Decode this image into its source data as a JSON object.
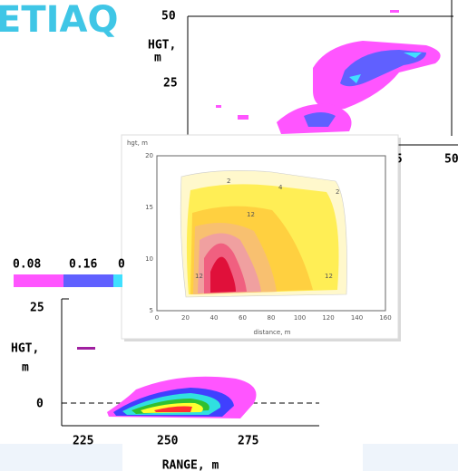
{
  "logo": "ETIAQ",
  "top_panel": {
    "y_label": [
      "HGT,",
      "m"
    ],
    "y_ticks": [
      "50",
      "25"
    ],
    "x_ticks": [
      "75",
      "50"
    ]
  },
  "middle_panel": {
    "y_label": "hgt, m",
    "y_ticks": [
      "20",
      "15",
      "10",
      "5"
    ],
    "x_ticks": [
      "0",
      "20",
      "40",
      "60",
      "80",
      "100",
      "120",
      "140",
      "160"
    ],
    "x_label": "distance, m",
    "contour_labels": [
      "2",
      "4",
      "2",
      "12",
      "12",
      "12"
    ]
  },
  "bottom_panel": {
    "colorbar_labels": [
      "0.08",
      "0.16",
      "0"
    ],
    "y_label": [
      "HGT,",
      "m"
    ],
    "y_ticks": [
      "25",
      "0"
    ],
    "x_ticks": [
      "225",
      "250",
      "275"
    ],
    "x_label": "RANGE, m"
  }
}
